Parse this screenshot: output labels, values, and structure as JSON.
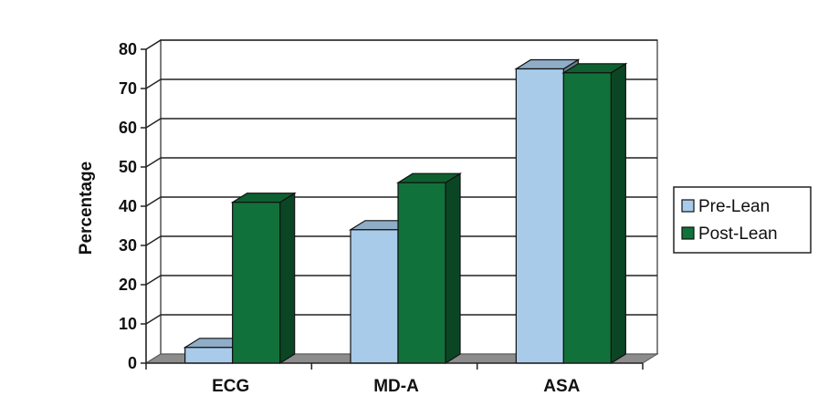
{
  "chart_data": {
    "type": "bar",
    "categories": [
      "ECG",
      "MD-A",
      "ASA"
    ],
    "series": [
      {
        "name": "Pre-Lean",
        "values": [
          4,
          34,
          75
        ],
        "color": "#a8cbea"
      },
      {
        "name": "Post-Lean",
        "values": [
          41,
          46,
          74
        ],
        "color": "#11713a"
      }
    ],
    "ylabel": "Percentage",
    "xlabel": "",
    "ylim": [
      0,
      80
    ],
    "yticks": [
      0,
      10,
      20,
      30,
      40,
      50,
      60,
      70,
      80
    ],
    "grid": true,
    "three_d": true,
    "legend_position": "right"
  }
}
